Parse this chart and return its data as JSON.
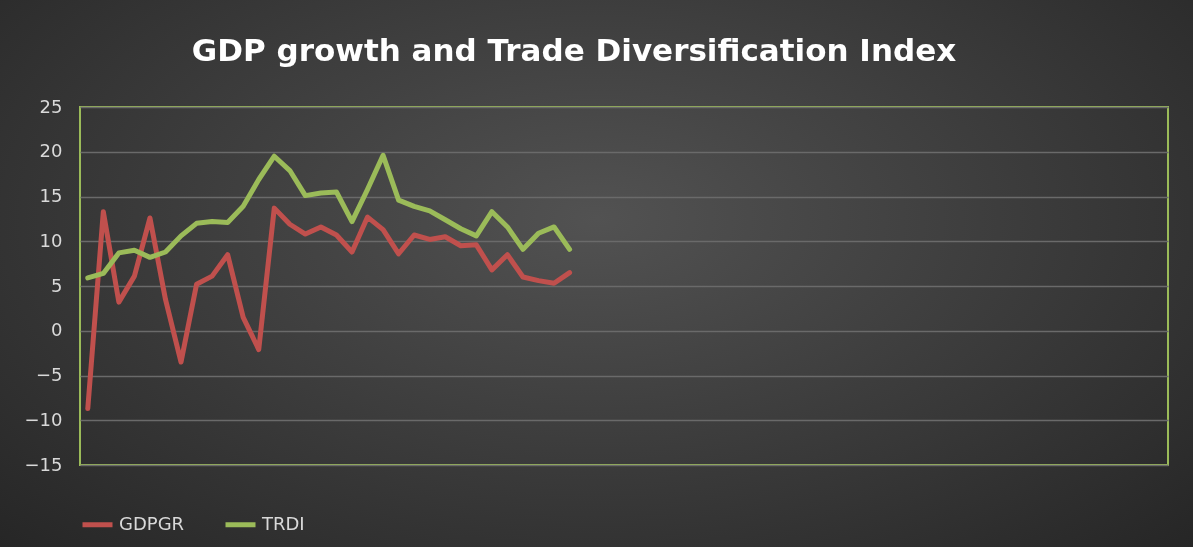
{
  "chart_data": {
    "type": "line",
    "title": "GDP growth and Trade Diversification Index",
    "categories": [
      null,
      null,
      null,
      null,
      null,
      null,
      null,
      null,
      null,
      null,
      null,
      null,
      null,
      null,
      null,
      null,
      null,
      null,
      null,
      null,
      null,
      null,
      null,
      null,
      null,
      null,
      null,
      null,
      null,
      null,
      null,
      null,
      null,
      null,
      null,
      null,
      null,
      null,
      null,
      null,
      null,
      null,
      null,
      null,
      null,
      null,
      null,
      null,
      null,
      null,
      null,
      null,
      null,
      null,
      null,
      null,
      null,
      null,
      null,
      null,
      null,
      null,
      null,
      null,
      null,
      null,
      null,
      null,
      null,
      null
    ],
    "series": [
      {
        "name": "GDPGR",
        "color": "#c0504d",
        "values": [
          -8.7,
          13.3,
          3.2,
          6.1,
          12.6,
          3.5,
          -3.5,
          5.2,
          6.1,
          8.5,
          1.5,
          -2.1,
          13.7,
          11.9,
          10.8,
          11.6,
          10.7,
          8.8,
          12.7,
          11.3,
          8.6,
          10.7,
          10.2,
          10.5,
          9.5,
          9.6,
          6.8,
          8.5,
          6.0,
          5.6,
          5.3,
          6.5,
          null,
          null,
          null,
          null,
          null,
          null,
          null,
          null,
          null,
          null,
          null,
          null,
          null,
          null,
          null,
          null,
          null,
          null,
          null,
          null,
          null,
          null,
          null,
          null,
          null,
          null,
          null,
          null,
          null,
          null,
          null,
          null,
          null,
          null,
          null,
          null,
          null,
          null
        ]
      },
      {
        "name": "TRDI",
        "color": "#9bbb59",
        "values": [
          5.9,
          6.4,
          8.7,
          9.0,
          8.2,
          8.8,
          10.6,
          12.0,
          12.2,
          12.1,
          13.9,
          16.9,
          19.5,
          17.9,
          15.1,
          15.4,
          15.5,
          12.2,
          15.8,
          19.6,
          14.6,
          13.9,
          13.4,
          12.4,
          11.4,
          10.6,
          13.3,
          11.6,
          9.1,
          10.9,
          11.6,
          9.1,
          null,
          null,
          null,
          null,
          null,
          null,
          null,
          null,
          null,
          null,
          null,
          null,
          null,
          null,
          null,
          null,
          null,
          null,
          null,
          null,
          null,
          null,
          null,
          null,
          null,
          null,
          null,
          null,
          null,
          null,
          null,
          null,
          null,
          null,
          null,
          null,
          null,
          null
        ]
      }
    ],
    "ylim": [
      -15,
      25
    ],
    "yticks": [
      -15,
      -10,
      -5,
      0,
      5,
      10,
      15,
      20,
      25
    ],
    "grid": "y",
    "legend": "bottom"
  }
}
